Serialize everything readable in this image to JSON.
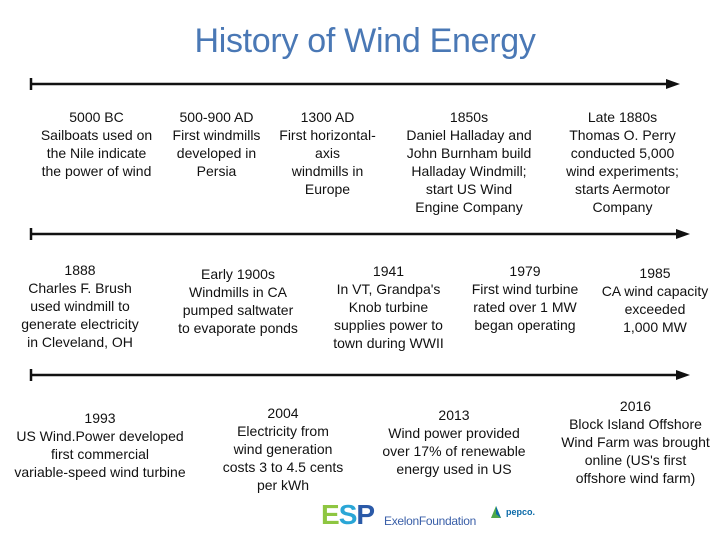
{
  "title": "History of Wind Energy",
  "colors": {
    "title": "#4a78b5",
    "axis": "#111111",
    "esp_green": "#8ec641",
    "esp_blue": "#2aa6d6",
    "esp_navy": "#2b5aa8"
  },
  "rows": [
    [
      {
        "year": "5000 BC",
        "text": "Sailboats used on\nthe Nile indicate\nthe power of wind"
      },
      {
        "year": "500-900 AD",
        "text": "First windmills\ndeveloped in\nPersia"
      },
      {
        "year": "1300 AD",
        "text": "First horizontal-\naxis\nwindmills in\nEurope"
      },
      {
        "year": "1850s",
        "text": "Daniel Halladay and\nJohn Burnham build\nHalladay Windmill;\nstart US Wind\nEngine Company"
      },
      {
        "year": "Late 1880s",
        "text": "Thomas O. Perry\nconducted 5,000\nwind experiments;\nstarts Aermotor\nCompany"
      }
    ],
    [
      {
        "year": "1888",
        "text": "Charles F. Brush\nused windmill to\ngenerate electricity\nin Cleveland, OH"
      },
      {
        "year": "Early 1900s",
        "text": "Windmills in CA\npumped saltwater\nto evaporate ponds"
      },
      {
        "year": "1941",
        "text": "In VT, Grandpa's\nKnob turbine\nsupplies power to\ntown during WWII"
      },
      {
        "year": "1979",
        "text": "First wind turbine\nrated over 1 MW\nbegan operating"
      },
      {
        "year": "1985",
        "text": "CA wind capacity\nexceeded\n1,000 MW"
      }
    ],
    [
      {
        "year": "1993",
        "text": "US Wind.Power developed\nfirst commercial\nvariable-speed wind turbine"
      },
      {
        "year": "2004",
        "text": "Electricity from\nwind generation\ncosts 3 to 4.5 cents\nper kWh"
      },
      {
        "year": "2013",
        "text": "Wind power provided\nover 17% of renewable\nenergy used in US"
      },
      {
        "year": "2016",
        "text": "Block Island Offshore\nWind Farm was brought\nonline (US's first\noffshore wind farm)"
      }
    ]
  ],
  "logos": {
    "esp": {
      "e": "E",
      "s": "S",
      "p": "P"
    },
    "exelon": "ExelonFoundation",
    "pepco": "pepco."
  }
}
